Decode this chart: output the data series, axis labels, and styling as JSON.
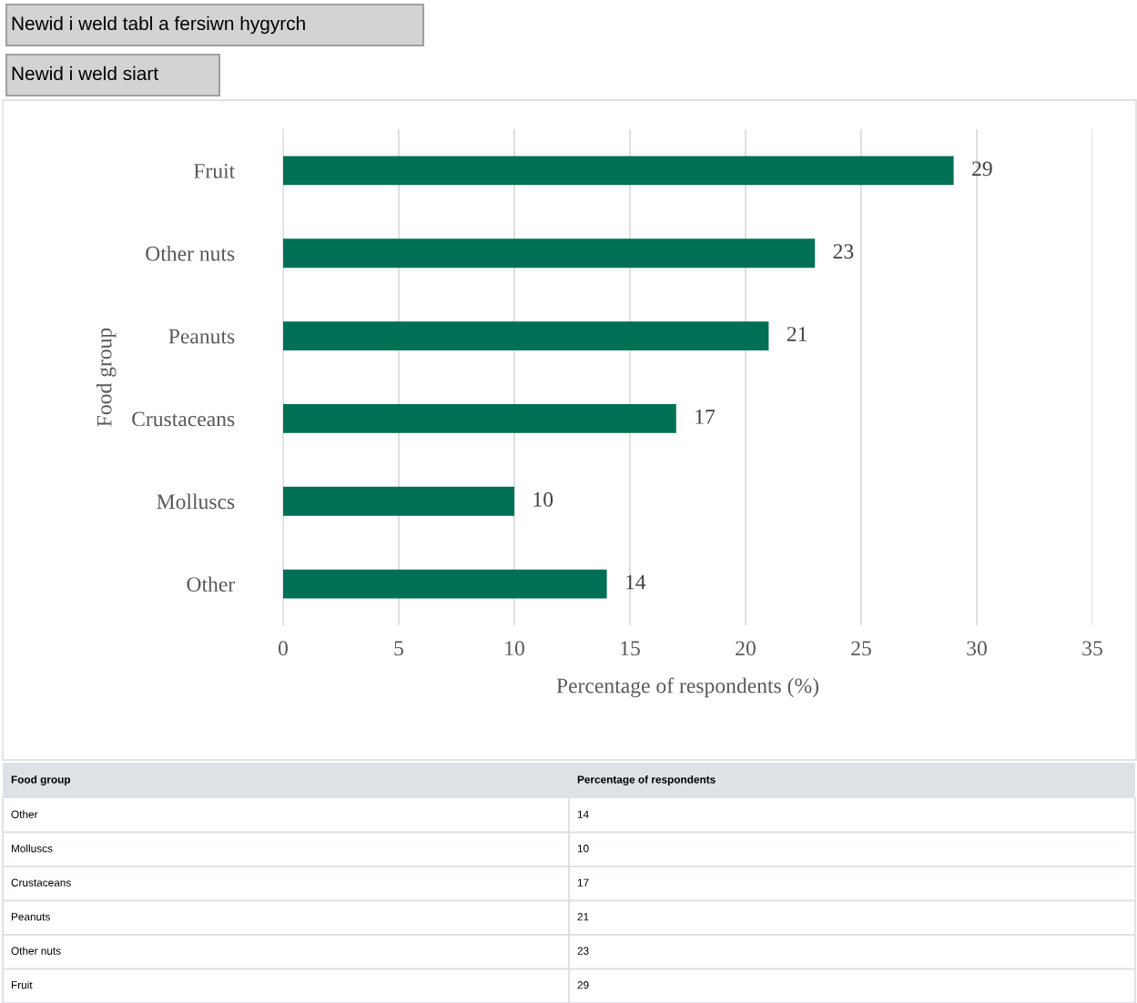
{
  "chart_data": [
    {
      "type": "bar",
      "orientation": "horizontal",
      "xlabel": "Percentage of respondents (%)",
      "ylabel": "Food group",
      "categories": [
        "Fruit",
        "Other nuts",
        "Peanuts",
        "Crustaceans",
        "Molluscs",
        "Other"
      ],
      "values": [
        29,
        23,
        21,
        17,
        10,
        14
      ],
      "color": "#007054",
      "xlim": [
        0,
        35
      ],
      "xticks": [
        0,
        5,
        10,
        15,
        20,
        25,
        30,
        35
      ],
      "grid": "x",
      "data_labels": true,
      "annotations": [
        "Newid i weld tabl a fersiwn hygyrch",
        "Newid i weld siart"
      ]
    },
    {
      "type": "other",
      "annotations": [
        "Food group",
        "Percentage of respondents",
        "Other",
        "14",
        "Molluscs",
        "10",
        "Crustaceans",
        "17",
        "Peanuts",
        "21",
        "Other nuts",
        "23",
        "Fruit",
        "29"
      ]
    }
  ]
}
